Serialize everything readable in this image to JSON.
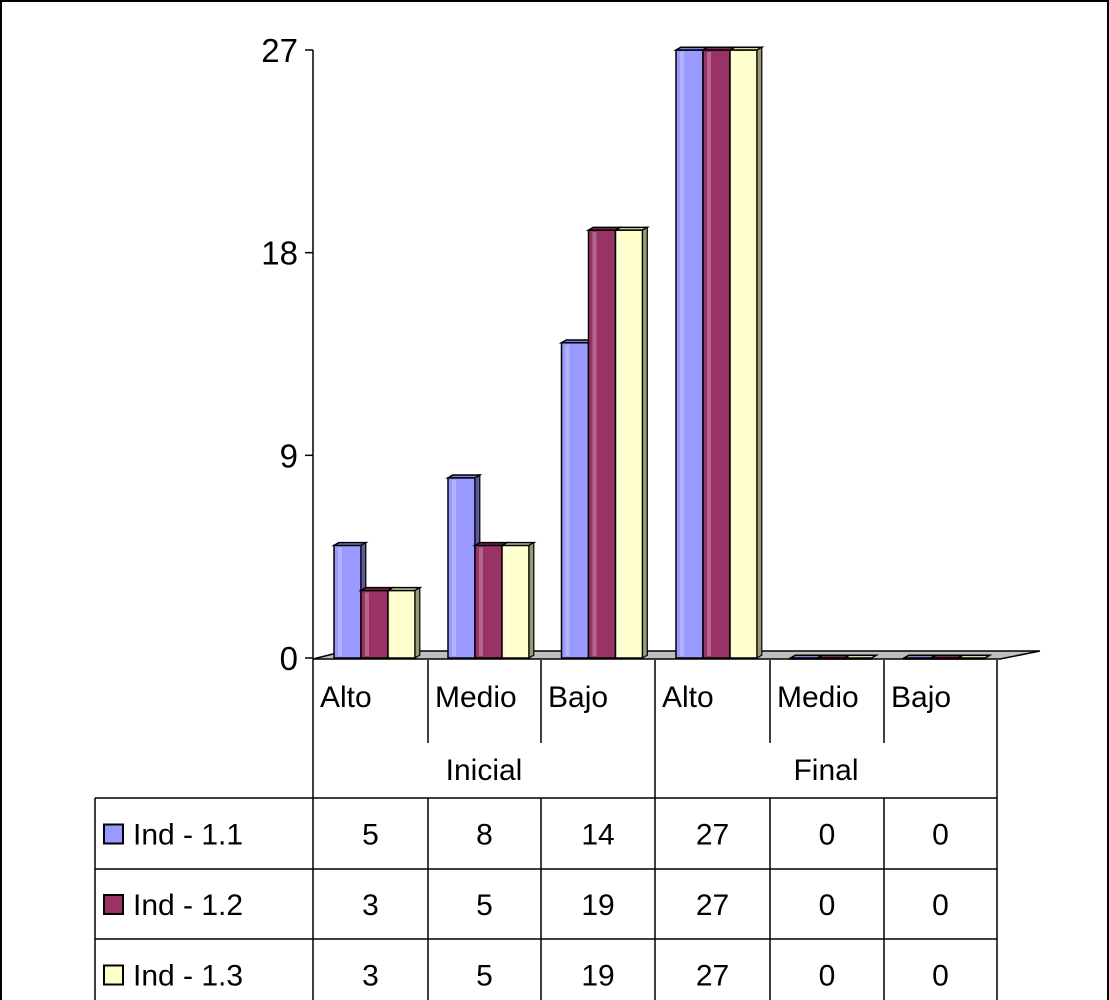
{
  "chart_data": {
    "type": "bar",
    "groups": [
      "Inicial",
      "Final"
    ],
    "categories": [
      "Alto",
      "Medio",
      "Bajo",
      "Alto",
      "Medio",
      "Bajo"
    ],
    "category_group": [
      0,
      0,
      0,
      1,
      1,
      1
    ],
    "series": [
      {
        "name": "Ind - 1.1",
        "values": [
          5,
          8,
          14,
          27,
          0,
          0
        ],
        "color": "#9999ff"
      },
      {
        "name": "Ind - 1.2",
        "values": [
          3,
          5,
          19,
          27,
          0,
          0
        ],
        "color": "#993366"
      },
      {
        "name": "Ind - 1.3",
        "values": [
          3,
          5,
          19,
          27,
          0,
          0
        ],
        "color": "#ffffcc"
      }
    ],
    "yticks": [
      0,
      9,
      18,
      27
    ],
    "ylim": [
      0,
      27
    ],
    "grid": false,
    "legend": "data-table"
  }
}
